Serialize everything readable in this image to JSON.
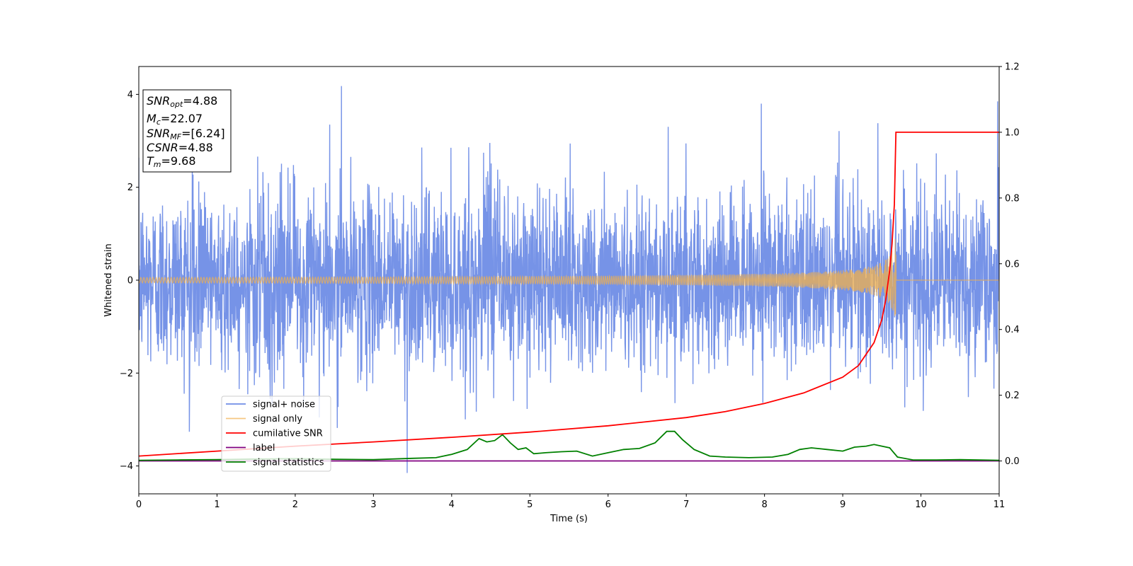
{
  "chart_data": {
    "type": "line",
    "xlabel": "Time (s)",
    "ylabel": "Whitened strain",
    "xlim": [
      0,
      11
    ],
    "ylim": [
      -4.6,
      4.6
    ],
    "y2lim": [
      -0.1,
      1.2
    ],
    "x_ticks": [
      "0",
      "1",
      "2",
      "3",
      "4",
      "5",
      "6",
      "7",
      "8",
      "9",
      "10",
      "11"
    ],
    "y_ticks": [
      "4",
      "2",
      "0",
      "−2",
      "−4"
    ],
    "y2_ticks": [
      "1.2",
      "1.0",
      "0.8",
      "0.6",
      "0.4",
      "0.2",
      "0.0"
    ],
    "info_box": {
      "snr_opt": {
        "sym": "SNR",
        "sub": "opt",
        "value": "=4.88"
      },
      "mc": {
        "sym": "M",
        "sub": "c",
        "value": "=22.07"
      },
      "snr_mf": {
        "sym": "SNR",
        "sub": "MF",
        "value": "=[6.24]"
      },
      "csnr": {
        "sym": "CSNR",
        "value": "=4.88"
      },
      "tm": {
        "sym": "T",
        "sub": "m",
        "value": "=9.68"
      }
    },
    "legend": [
      "signal+ noise",
      "signal only",
      "cumilative SNR",
      "label",
      "signal statistics"
    ],
    "colors": {
      "noise": "#6f8de6",
      "signal": "#f2b04c",
      "csnr": "#ff0000",
      "label": "#800080",
      "stats": "#008000"
    },
    "series": [
      {
        "name": "signal+ noise",
        "axis": "left",
        "description_range": [
          -4.15,
          4.18
        ],
        "spikes": [
          [
            2.59,
            4.18
          ],
          [
            3.43,
            -4.15
          ],
          [
            10.98,
            3.85
          ],
          [
            7.96,
            3.8
          ],
          [
            2.44,
            3.35
          ],
          [
            6.77,
            3.3
          ],
          [
            9.45,
            3.38
          ]
        ]
      },
      {
        "name": "signal only",
        "axis": "left",
        "chirp_merger_time": 9.68,
        "peak_amplitude": 1.05
      },
      {
        "name": "cumilative SNR",
        "axis": "right",
        "x": [
          0,
          1,
          2,
          3,
          4,
          5,
          6,
          7,
          7.5,
          8,
          8.5,
          9,
          9.2,
          9.4,
          9.5,
          9.55,
          9.6,
          9.63,
          9.66,
          9.68,
          11
        ],
        "y": [
          0.015,
          0.03,
          0.045,
          0.058,
          0.072,
          0.088,
          0.107,
          0.132,
          0.15,
          0.175,
          0.207,
          0.255,
          0.29,
          0.36,
          0.43,
          0.49,
          0.58,
          0.66,
          0.78,
          1.0,
          1.0
        ]
      },
      {
        "name": "label",
        "axis": "right",
        "x": [
          0,
          11
        ],
        "y": [
          0,
          0
        ]
      },
      {
        "name": "signal statistics",
        "axis": "right",
        "x": [
          0,
          0.5,
          1,
          1.5,
          2,
          2.5,
          3,
          3.5,
          3.8,
          4.0,
          4.2,
          4.35,
          4.45,
          4.55,
          4.65,
          4.75,
          4.85,
          4.95,
          5.05,
          5.2,
          5.4,
          5.6,
          5.8,
          6.0,
          6.2,
          6.4,
          6.6,
          6.75,
          6.85,
          6.95,
          7.1,
          7.3,
          7.5,
          7.8,
          8.1,
          8.3,
          8.45,
          8.6,
          8.8,
          9.0,
          9.15,
          9.3,
          9.4,
          9.5,
          9.6,
          9.7,
          9.9,
          10.2,
          10.5,
          11
        ],
        "y": [
          0.002,
          0.003,
          0.004,
          0.006,
          0.007,
          0.005,
          0.004,
          0.008,
          0.01,
          0.02,
          0.035,
          0.068,
          0.058,
          0.062,
          0.08,
          0.055,
          0.035,
          0.04,
          0.022,
          0.025,
          0.028,
          0.03,
          0.015,
          0.025,
          0.035,
          0.038,
          0.055,
          0.09,
          0.09,
          0.065,
          0.035,
          0.015,
          0.012,
          0.01,
          0.012,
          0.02,
          0.035,
          0.04,
          0.035,
          0.03,
          0.042,
          0.045,
          0.05,
          0.045,
          0.04,
          0.012,
          0.003,
          0.003,
          0.004,
          0.002
        ]
      }
    ]
  }
}
